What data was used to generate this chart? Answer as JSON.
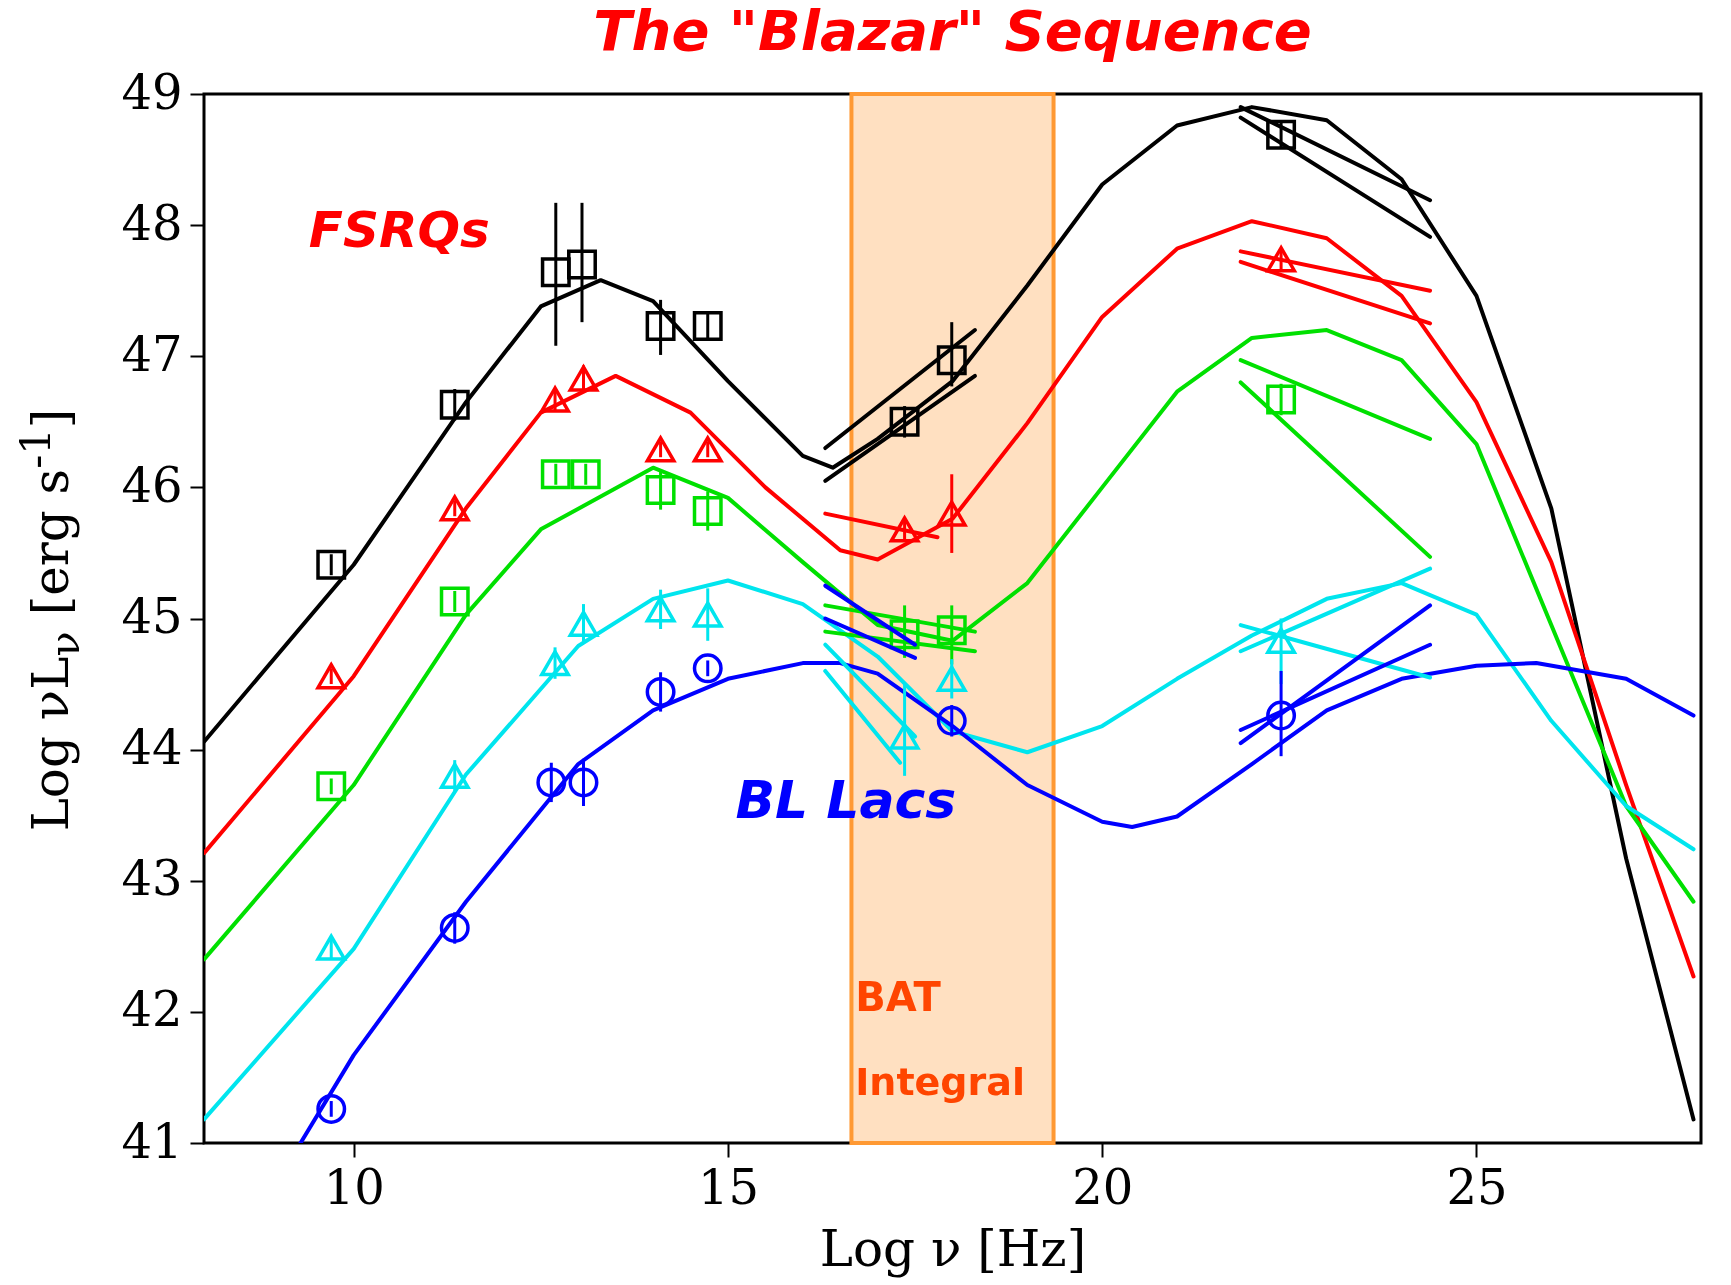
{
  "chart_data": {
    "type": "line",
    "title": "The \"Blazar\" Sequence",
    "xlabel": "Log ν  [Hz]",
    "ylabel": "Log νL$_{ν}$ [erg s$^{-1}$]",
    "xlim": [
      8,
      28
    ],
    "ylim": [
      41,
      49
    ],
    "xticks": [
      10,
      15,
      20,
      25
    ],
    "yticks": [
      41,
      42,
      43,
      44,
      45,
      46,
      47,
      48,
      49
    ],
    "grid": false,
    "bands": [
      {
        "axis": "x",
        "from": 16.65,
        "to": 19.35,
        "color": "#ff9933"
      }
    ],
    "annotations": [
      "FSRQs",
      "BL Lacs",
      "BAT",
      "Integral"
    ],
    "series": [
      {
        "type": "line",
        "color": "#000000",
        "x": [
          8,
          10,
          11.5,
          12.5,
          13.3,
          14,
          15,
          16,
          16.4,
          17,
          18,
          19,
          20,
          21,
          22,
          23,
          24,
          25,
          26,
          27,
          27.9
        ],
        "values": [
          44.06,
          45.41,
          46.65,
          47.38,
          47.58,
          47.42,
          46.81,
          46.24,
          46.15,
          46.37,
          46.81,
          47.54,
          48.31,
          48.76,
          48.9,
          48.8,
          48.35,
          47.46,
          45.84,
          43.17,
          41.18
        ]
      },
      {
        "type": "line",
        "color": "#ff0000",
        "x": [
          8,
          10,
          11.5,
          12.5,
          13.5,
          14.5,
          15.5,
          16.5,
          17,
          18,
          19,
          20,
          21,
          22,
          23,
          24,
          25,
          26,
          27,
          27.9
        ],
        "values": [
          43.21,
          44.56,
          45.84,
          46.57,
          46.85,
          46.57,
          46.0,
          45.52,
          45.45,
          45.76,
          46.49,
          47.3,
          47.82,
          48.03,
          47.9,
          47.46,
          46.65,
          45.43,
          43.73,
          42.27
        ]
      },
      {
        "type": "line",
        "color": "#00e000",
        "x": [
          8,
          10,
          11.5,
          12.5,
          14,
          15,
          16,
          17,
          18,
          19,
          20,
          21,
          22,
          23,
          24,
          25,
          26,
          27,
          27.9
        ],
        "values": [
          42.4,
          43.73,
          45.03,
          45.68,
          46.15,
          45.92,
          45.43,
          44.95,
          44.83,
          45.27,
          46.0,
          46.73,
          47.14,
          47.2,
          46.97,
          46.33,
          44.95,
          43.57,
          42.84
        ]
      },
      {
        "type": "line",
        "color": "#00e5ee",
        "x": [
          8,
          10,
          11.5,
          13,
          14,
          15,
          16,
          17,
          18,
          19,
          20,
          21,
          22,
          23,
          24,
          25,
          26,
          27,
          27.9
        ],
        "values": [
          41.18,
          42.48,
          43.81,
          44.79,
          45.15,
          45.29,
          45.11,
          44.71,
          44.14,
          43.98,
          44.18,
          44.54,
          44.87,
          45.15,
          45.27,
          45.03,
          44.22,
          43.57,
          43.24
        ]
      },
      {
        "type": "line",
        "color": "#0000ff",
        "x": [
          9.29,
          10,
          11.5,
          13,
          14,
          15,
          16,
          16.5,
          17,
          18,
          19,
          20,
          20.4,
          21,
          22,
          23,
          24,
          25,
          25.8,
          27,
          27.9
        ],
        "values": [
          41,
          41.67,
          42.84,
          43.89,
          44.3,
          44.54,
          44.66,
          44.66,
          44.58,
          44.18,
          43.73,
          43.45,
          43.41,
          43.49,
          43.89,
          44.3,
          44.54,
          44.64,
          44.66,
          44.54,
          44.26
        ]
      },
      {
        "type": "scatter",
        "color": "#000000",
        "marker": "square",
        "x": [
          9.7,
          11.35,
          12.7,
          13.05,
          14.1,
          14.73,
          17.36,
          17.99,
          22.39
        ],
        "values": [
          45.41,
          46.63,
          47.64,
          47.7,
          47.23,
          47.23,
          46.5,
          46.97,
          48.69
        ],
        "errors": [
          0.08,
          0.12,
          [
            47.08,
            48.17
          ],
          [
            47.26,
            48.17
          ],
          [
            47.01,
            47.43
          ],
          0.1,
          0.12,
          [
            46.77,
            47.26
          ],
          0.1
        ]
      },
      {
        "type": "scatter",
        "color": "#ff0000",
        "marker": "triangle",
        "x": [
          9.7,
          11.35,
          12.69,
          13.07,
          14.1,
          14.73,
          17.36,
          17.99,
          22.39
        ],
        "values": [
          44.56,
          45.84,
          46.67,
          46.83,
          46.29,
          46.29,
          45.68,
          45.8,
          47.74
        ],
        "errors": [
          0.06,
          0.06,
          0.08,
          0.1,
          0.06,
          0.06,
          0.08,
          [
            45.5,
            46.1
          ],
          0.08
        ]
      },
      {
        "type": "scatter",
        "color": "#00e000",
        "marker": "square",
        "x": [
          9.7,
          11.35,
          12.7,
          13.1,
          14.1,
          14.73,
          17.36,
          17.99,
          22.39
        ],
        "values": [
          43.72,
          45.13,
          46.1,
          46.1,
          45.98,
          45.82,
          44.88,
          44.91,
          46.67
        ],
        "errors": [
          0.06,
          0.08,
          0.08,
          0.08,
          0.15,
          0.15,
          [
            44.7,
            45.1
          ],
          [
            44.65,
            45.1
          ],
          0.12
        ]
      },
      {
        "type": "scatter",
        "color": "#00e5ee",
        "marker": "triangle",
        "x": [
          9.7,
          11.35,
          12.69,
          13.07,
          14.1,
          14.73,
          17.36,
          17.99,
          22.39
        ],
        "values": [
          42.49,
          43.8,
          44.66,
          44.96,
          45.07,
          45.03,
          44.1,
          44.54,
          44.83
        ],
        "errors": [
          0.08,
          0.12,
          0.12,
          0.15,
          0.15,
          0.2,
          [
            43.8,
            44.5
          ],
          0.15,
          [
            44.5,
            45.0
          ]
        ]
      },
      {
        "type": "scatter",
        "color": "#0000ff",
        "marker": "circle",
        "x": [
          9.7,
          11.35,
          12.64,
          13.07,
          14.1,
          14.73,
          17.99,
          22.39
        ],
        "values": [
          41.26,
          42.64,
          43.75,
          43.75,
          44.44,
          44.62,
          44.22,
          44.26
        ],
        "errors": [
          0.06,
          0.12,
          0.15,
          0.18,
          0.15,
          0.06,
          0.12,
          [
            43.95,
            44.6
          ]
        ]
      },
      {
        "type": "line",
        "color": "#000000",
        "x": [
          16.3,
          18.3
        ],
        "values": [
          46.05,
          46.85
        ]
      },
      {
        "type": "line",
        "color": "#000000",
        "x": [
          16.3,
          18.3
        ],
        "values": [
          46.3,
          47.2
        ]
      },
      {
        "type": "line",
        "color": "#000000",
        "x": [
          21.85,
          24.38
        ],
        "values": [
          48.9,
          48.19
        ]
      },
      {
        "type": "line",
        "color": "#000000",
        "x": [
          21.85,
          24.38
        ],
        "values": [
          48.82,
          47.91
        ]
      },
      {
        "type": "line",
        "color": "#ff0000",
        "x": [
          16.3,
          17.8
        ],
        "values": [
          45.8,
          45.62
        ]
      },
      {
        "type": "line",
        "color": "#ff0000",
        "x": [
          21.85,
          24.38
        ],
        "values": [
          47.8,
          47.5
        ]
      },
      {
        "type": "line",
        "color": "#ff0000",
        "x": [
          21.85,
          24.38
        ],
        "values": [
          47.72,
          47.25
        ]
      },
      {
        "type": "line",
        "color": "#00e000",
        "x": [
          16.3,
          18.3
        ],
        "values": [
          45.1,
          44.9
        ]
      },
      {
        "type": "line",
        "color": "#00e000",
        "x": [
          16.3,
          18.3
        ],
        "values": [
          44.9,
          44.75
        ]
      },
      {
        "type": "line",
        "color": "#00e000",
        "x": [
          21.85,
          24.38
        ],
        "values": [
          46.97,
          46.37
        ]
      },
      {
        "type": "line",
        "color": "#00e000",
        "x": [
          21.85,
          24.38
        ],
        "values": [
          46.8,
          45.47
        ]
      },
      {
        "type": "line",
        "color": "#00e5ee",
        "x": [
          16.3,
          17.5
        ],
        "values": [
          44.8,
          44.1
        ]
      },
      {
        "type": "line",
        "color": "#00e5ee",
        "x": [
          16.3,
          17.3
        ],
        "values": [
          44.6,
          43.9
        ]
      },
      {
        "type": "line",
        "color": "#00e5ee",
        "x": [
          21.85,
          24.38
        ],
        "values": [
          44.75,
          45.38
        ]
      },
      {
        "type": "line",
        "color": "#00e5ee",
        "x": [
          21.85,
          24.38
        ],
        "values": [
          44.95,
          44.55
        ]
      },
      {
        "type": "line",
        "color": "#0000ff",
        "x": [
          16.3,
          17.5
        ],
        "values": [
          45.25,
          44.8
        ]
      },
      {
        "type": "line",
        "color": "#0000ff",
        "x": [
          16.3,
          17.5
        ],
        "values": [
          45.0,
          44.7
        ]
      },
      {
        "type": "line",
        "color": "#0000ff",
        "x": [
          21.85,
          24.38
        ],
        "values": [
          44.05,
          45.1
        ]
      },
      {
        "type": "line",
        "color": "#0000ff",
        "x": [
          21.85,
          24.38
        ],
        "values": [
          44.15,
          44.8
        ]
      }
    ]
  }
}
